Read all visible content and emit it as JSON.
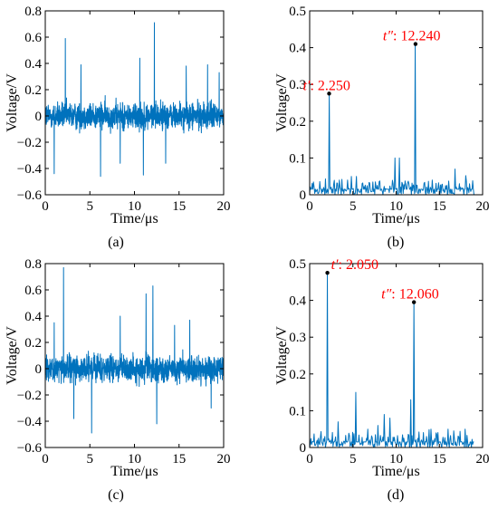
{
  "colors": {
    "series": "#0072bd",
    "annotation": "#ff0000",
    "axes": "#000000"
  },
  "chart_data": [
    {
      "id": "a",
      "panel_label": "(a)",
      "type": "line",
      "xlabel": "Time/μs",
      "ylabel": "Voltage/V",
      "xlim": [
        0,
        20
      ],
      "ylim": [
        -0.6,
        0.8
      ],
      "xticks": [
        0,
        5,
        10,
        15,
        20
      ],
      "yticks": [
        -0.6,
        -0.4,
        -0.2,
        0,
        0.2,
        0.4,
        0.6,
        0.8
      ],
      "ytick_labels": [
        "−0.6",
        "−0.4",
        "−0.2",
        "0",
        "0.2",
        "0.4",
        "0.6",
        "0.8"
      ],
      "series": [
        {
          "signal": "noisy",
          "x_range": [
            0,
            20
          ],
          "samples": 1200,
          "noise_amplitude": 0.1,
          "spikes": [
            {
              "x": 2.25,
              "y": 0.59
            },
            {
              "x": 12.24,
              "y": 0.71
            },
            {
              "x": 11.0,
              "y": -0.45
            },
            {
              "x": 6.2,
              "y": -0.46
            },
            {
              "x": 1.0,
              "y": -0.44
            },
            {
              "x": 4.0,
              "y": 0.39
            },
            {
              "x": 10.6,
              "y": 0.44
            },
            {
              "x": 15.8,
              "y": 0.38
            },
            {
              "x": 18.2,
              "y": 0.39
            },
            {
              "x": 13.5,
              "y": -0.36
            },
            {
              "x": 8.4,
              "y": -0.36
            },
            {
              "x": 19.5,
              "y": 0.33
            }
          ]
        }
      ]
    },
    {
      "id": "b",
      "panel_label": "(b)",
      "type": "line",
      "xlabel": "Time/μs",
      "ylabel": "Voltage/V",
      "xlim": [
        0,
        20
      ],
      "ylim": [
        0,
        0.5
      ],
      "xticks": [
        0,
        5,
        10,
        15,
        20
      ],
      "yticks": [
        0,
        0.1,
        0.2,
        0.3,
        0.4,
        0.5
      ],
      "ytick_labels": [
        "0",
        "0.1",
        "0.2",
        "0.3",
        "0.4",
        "0.5"
      ],
      "series": [
        {
          "signal": "envelope",
          "x_range": [
            0,
            19
          ],
          "samples": 260,
          "base_level": 0.015,
          "noise_amplitude": 0.03,
          "peaks": [
            {
              "x": 2.25,
              "y": 0.275
            },
            {
              "x": 12.24,
              "y": 0.41
            },
            {
              "x": 9.9,
              "y": 0.1
            },
            {
              "x": 10.35,
              "y": 0.1
            },
            {
              "x": 5.4,
              "y": 0.05
            },
            {
              "x": 4.4,
              "y": 0.04
            },
            {
              "x": 16.8,
              "y": 0.07
            },
            {
              "x": 14.2,
              "y": 0.04
            },
            {
              "x": 3.4,
              "y": 0.04
            },
            {
              "x": 18.5,
              "y": 0.03
            },
            {
              "x": 7.6,
              "y": 0.035
            }
          ]
        }
      ],
      "annotations": [
        {
          "var": "t′",
          "text": ": 2.250",
          "x": 2.25,
          "y": 0.275,
          "align": "end"
        },
        {
          "var": "t″",
          "text": ": 12.240",
          "x": 12.24,
          "y": 0.41,
          "align": "middle"
        }
      ]
    },
    {
      "id": "c",
      "panel_label": "(c)",
      "type": "line",
      "xlabel": "Time/μs",
      "ylabel": "Voltage/V",
      "xlim": [
        0,
        20
      ],
      "ylim": [
        -0.6,
        0.8
      ],
      "xticks": [
        0,
        5,
        10,
        15,
        20
      ],
      "yticks": [
        -0.6,
        -0.4,
        -0.2,
        0,
        0.2,
        0.4,
        0.6,
        0.8
      ],
      "ytick_labels": [
        "−0.6",
        "−0.4",
        "−0.2",
        "0",
        "0.2",
        "0.4",
        "0.6",
        "0.8"
      ],
      "series": [
        {
          "signal": "noisy",
          "x_range": [
            0,
            20
          ],
          "samples": 1200,
          "noise_amplitude": 0.1,
          "spikes": [
            {
              "x": 2.05,
              "y": 0.77
            },
            {
              "x": 12.06,
              "y": 0.63
            },
            {
              "x": 5.2,
              "y": -0.49
            },
            {
              "x": 11.3,
              "y": 0.57
            },
            {
              "x": 3.2,
              "y": -0.38
            },
            {
              "x": 8.4,
              "y": 0.4
            },
            {
              "x": 12.5,
              "y": -0.42
            },
            {
              "x": 16.2,
              "y": 0.37
            },
            {
              "x": 1.0,
              "y": 0.35
            },
            {
              "x": 18.6,
              "y": -0.3
            },
            {
              "x": 14.5,
              "y": 0.33
            }
          ]
        }
      ]
    },
    {
      "id": "d",
      "panel_label": "(d)",
      "type": "line",
      "xlabel": "Time/μs",
      "ylabel": "Voltage/V",
      "xlim": [
        0,
        20
      ],
      "ylim": [
        0,
        0.5
      ],
      "xticks": [
        0,
        5,
        10,
        15,
        20
      ],
      "yticks": [
        0,
        0.1,
        0.2,
        0.3,
        0.4,
        0.5
      ],
      "ytick_labels": [
        "0",
        "0.1",
        "0.2",
        "0.3",
        "0.4",
        "0.5"
      ],
      "series": [
        {
          "signal": "envelope",
          "x_range": [
            0,
            19
          ],
          "samples": 260,
          "base_level": 0.015,
          "noise_amplitude": 0.03,
          "peaks": [
            {
              "x": 2.05,
              "y": 0.475
            },
            {
              "x": 12.06,
              "y": 0.395
            },
            {
              "x": 5.3,
              "y": 0.15
            },
            {
              "x": 11.7,
              "y": 0.13
            },
            {
              "x": 3.3,
              "y": 0.07
            },
            {
              "x": 8.6,
              "y": 0.09
            },
            {
              "x": 9.3,
              "y": 0.08
            },
            {
              "x": 7.9,
              "y": 0.06
            },
            {
              "x": 16.0,
              "y": 0.05
            },
            {
              "x": 14.0,
              "y": 0.05
            },
            {
              "x": 18.0,
              "y": 0.05
            },
            {
              "x": 6.7,
              "y": 0.05
            }
          ]
        }
      ],
      "annotations": [
        {
          "var": "t′",
          "text": ": 2.050",
          "x": 2.05,
          "y": 0.475,
          "align": "start"
        },
        {
          "var": "t″",
          "text": ": 12.060",
          "x": 12.06,
          "y": 0.395,
          "align": "middle"
        }
      ]
    }
  ]
}
